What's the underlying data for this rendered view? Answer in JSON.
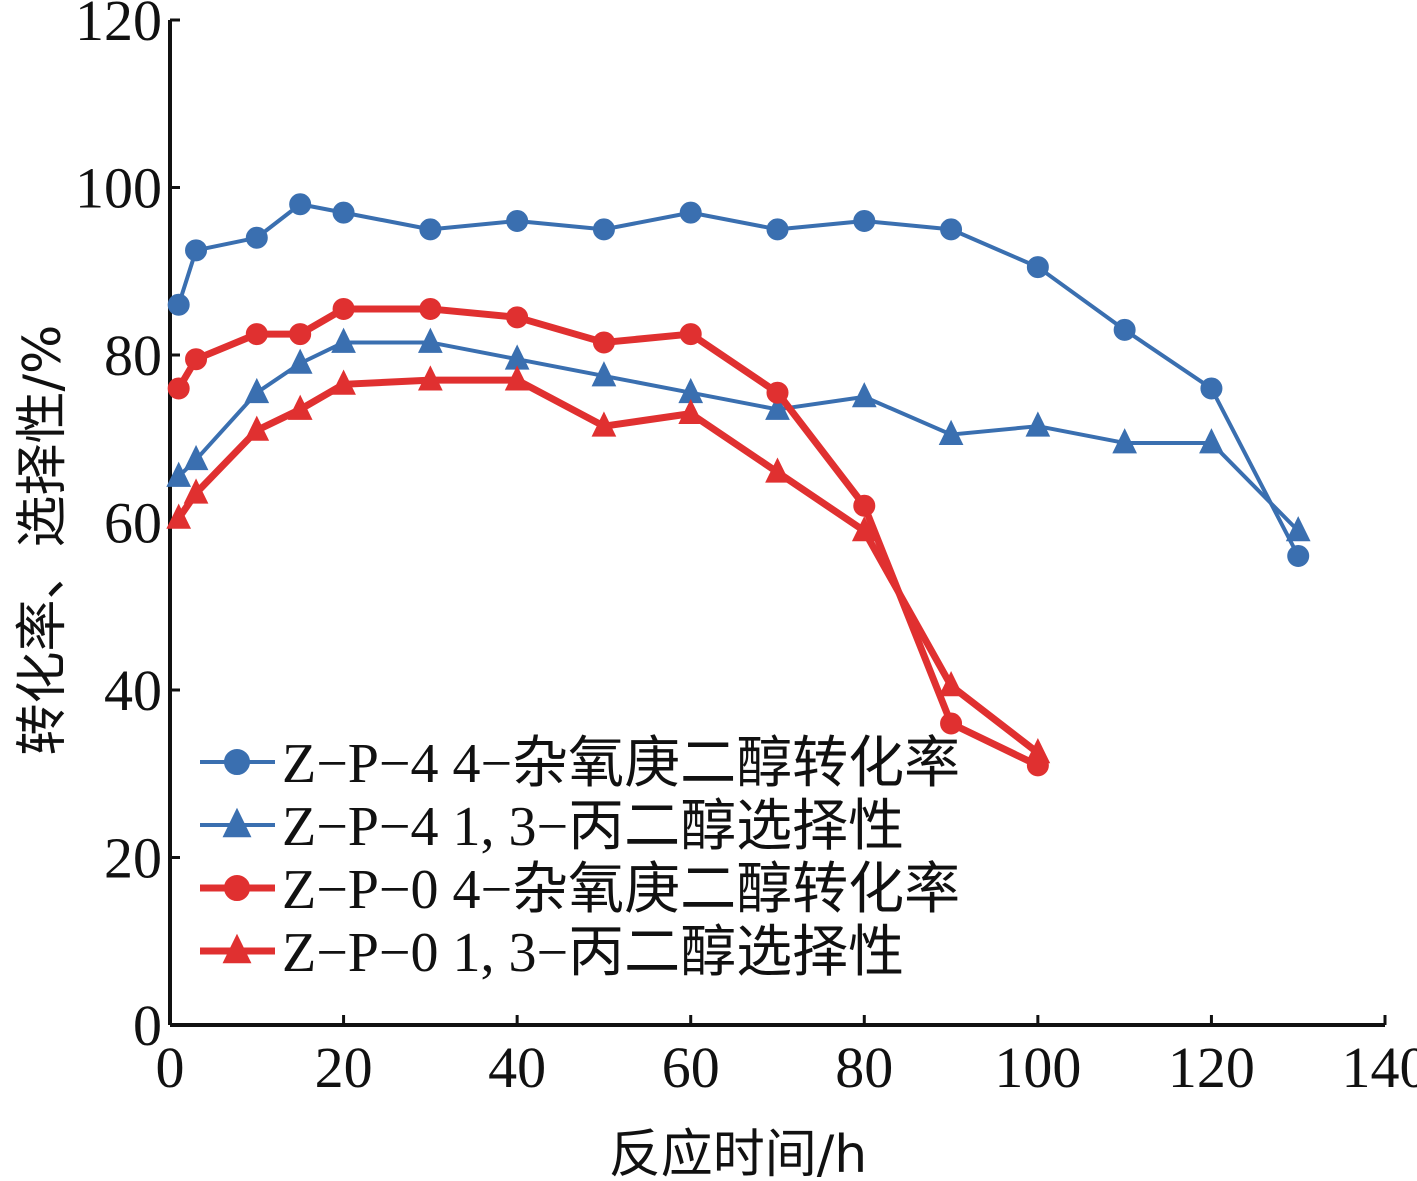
{
  "chart_data": {
    "type": "line",
    "title": "",
    "xlabel": "反应时间/h",
    "ylabel": "转化率、选择性/%",
    "xlim": [
      0,
      140
    ],
    "ylim": [
      0,
      120
    ],
    "xticks": [
      "0",
      "20",
      "40",
      "60",
      "80",
      "100",
      "120",
      "140"
    ],
    "yticks": [
      "0",
      "20",
      "40",
      "60",
      "80",
      "100",
      "120"
    ],
    "xtick_values": [
      0,
      20,
      40,
      60,
      80,
      100,
      120,
      140
    ],
    "ytick_values": [
      0,
      20,
      40,
      60,
      80,
      100,
      120
    ],
    "grid": false,
    "legend_position": "bottom-left",
    "series": [
      {
        "name": "Z−P−4 4−杂氧庚二醇转化率",
        "color": "#3a6fb0",
        "marker": "circle",
        "line_width": 4,
        "x": [
          1,
          3,
          10,
          15,
          20,
          30,
          40,
          50,
          60,
          70,
          80,
          90,
          100,
          110,
          120,
          130
        ],
        "y": [
          86,
          92.5,
          94,
          98,
          97,
          95,
          96,
          95,
          97,
          95,
          96,
          95,
          90.5,
          83,
          76,
          56
        ]
      },
      {
        "name": "Z−P−4 1, 3−丙二醇选择性",
        "color": "#3a6fb0",
        "marker": "triangle",
        "line_width": 4,
        "x": [
          1,
          3,
          10,
          15,
          20,
          30,
          40,
          50,
          60,
          70,
          80,
          90,
          100,
          110,
          120,
          130
        ],
        "y": [
          65.5,
          67.5,
          75.5,
          79,
          81.5,
          81.5,
          79.5,
          77.5,
          75.5,
          73.5,
          75,
          70.5,
          71.5,
          69.5,
          69.5,
          59
        ]
      },
      {
        "name": "Z−P−0 4−杂氧庚二醇转化率",
        "color": "#e03030",
        "marker": "circle",
        "line_width": 7,
        "x": [
          1,
          3,
          10,
          15,
          20,
          30,
          40,
          50,
          60,
          70,
          80,
          90,
          100
        ],
        "y": [
          76,
          79.5,
          82.5,
          82.5,
          85.5,
          85.5,
          84.5,
          81.5,
          82.5,
          75.5,
          62,
          36,
          31
        ]
      },
      {
        "name": "Z−P−0 1, 3−丙二醇选择性",
        "color": "#e03030",
        "marker": "triangle",
        "line_width": 7,
        "x": [
          1,
          3,
          10,
          15,
          20,
          30,
          40,
          50,
          60,
          70,
          80,
          90,
          100
        ],
        "y": [
          60.5,
          63.5,
          71,
          73.5,
          76.5,
          77,
          77,
          71.5,
          73,
          66,
          59,
          40.5,
          32.5
        ]
      }
    ]
  }
}
